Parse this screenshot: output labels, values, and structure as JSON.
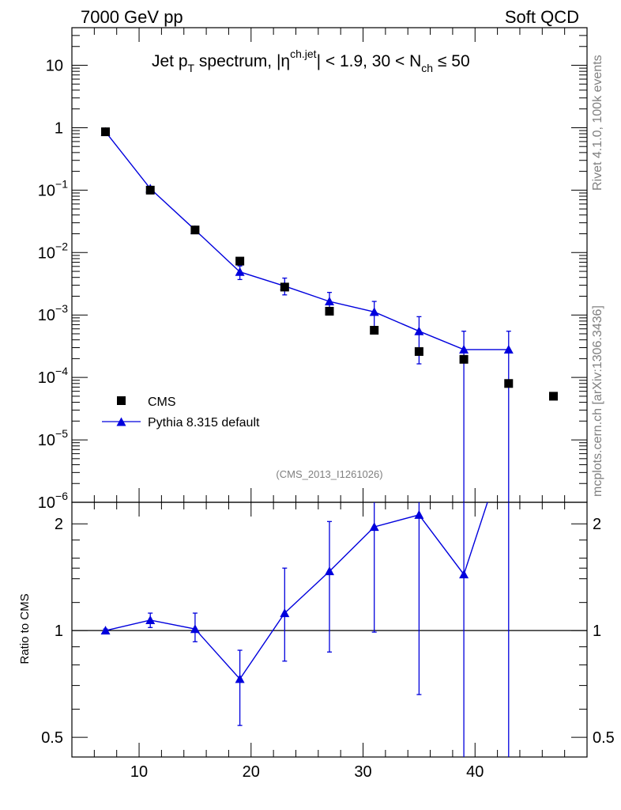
{
  "header": {
    "energy": "7000 GeV pp",
    "category": "Soft QCD"
  },
  "side": {
    "version": "Rivet 4.1.0,  100k events",
    "source": "mcplots.cern.ch [arXiv:1306.3436]"
  },
  "colors": {
    "mc": "#0000dd",
    "data": "#000000"
  },
  "chart_data": [
    {
      "type": "scatter",
      "title_parts": {
        "pre": "Jet p",
        "pt_sub": "T",
        "mid": " spectrum, |η",
        "eta_sup": "ch.jet",
        "post": "| < 1.9, 30 < N",
        "n_sub": "ch",
        "tail": " ≤ 50"
      },
      "analysis_id": "(CMS_2013_I1261026)",
      "xlim": [
        4,
        50
      ],
      "yscale": "log",
      "ylim": [
        1e-06,
        40
      ],
      "yticks": [
        {
          "v": 10,
          "base": "10",
          "exp": ""
        },
        {
          "v": 1,
          "base": "1",
          "exp": ""
        },
        {
          "v": 0.1,
          "base": "10",
          "exp": "−1"
        },
        {
          "v": 0.01,
          "base": "10",
          "exp": "−2"
        },
        {
          "v": 0.001,
          "base": "10",
          "exp": "−3"
        },
        {
          "v": 0.0001,
          "base": "10",
          "exp": "−4"
        },
        {
          "v": 1e-05,
          "base": "10",
          "exp": "−5"
        },
        {
          "v": 1e-06,
          "base": "10",
          "exp": "−6"
        }
      ],
      "legend": [
        "CMS",
        "Pythia 8.315 default"
      ],
      "series": [
        {
          "name": "CMS",
          "marker": "square",
          "x": [
            7,
            11,
            15,
            19,
            23,
            27,
            31,
            35,
            39,
            43,
            47
          ],
          "y": [
            0.86,
            0.1,
            0.023,
            0.0073,
            0.0028,
            0.00115,
            0.00057,
            0.00026,
            0.000195,
            8e-05,
            5e-05
          ]
        },
        {
          "name": "Pythia 8.315 default",
          "marker": "triangle",
          "x": [
            7,
            11,
            15,
            19,
            23,
            27,
            31,
            35,
            39,
            43
          ],
          "y": [
            0.86,
            0.106,
            0.023,
            0.0049,
            0.0029,
            0.00165,
            0.00112,
            0.00055,
            0.00028,
            0.00028
          ],
          "y_low": [
            0.84,
            0.101,
            0.0215,
            0.0037,
            0.0021,
            0.00108,
            0.00062,
            0.000165,
            5e-07,
            5e-07
          ],
          "y_high": [
            0.88,
            0.111,
            0.0245,
            0.0061,
            0.0039,
            0.0023,
            0.00165,
            0.00094,
            0.00055,
            0.00055
          ],
          "step_to": 43
        }
      ]
    },
    {
      "type": "line",
      "ylabel": "Ratio to CMS",
      "xlabel_ticks": [
        "10",
        "20",
        "30",
        "40"
      ],
      "xticks": [
        10,
        20,
        30,
        40
      ],
      "xlim": [
        4,
        50
      ],
      "yscale": "log",
      "ylim": [
        0.44,
        2.3
      ],
      "yticks": [
        {
          "v": 0.5,
          "label": "0.5"
        },
        {
          "v": 1,
          "label": "1"
        },
        {
          "v": 2,
          "label": "2"
        }
      ],
      "series": [
        {
          "name": "Pythia 8.315 default / CMS",
          "x": [
            7,
            11,
            15,
            19,
            23,
            27,
            31,
            35,
            39,
            43
          ],
          "y": [
            1.0,
            1.07,
            1.01,
            0.73,
            1.12,
            1.47,
            1.96,
            2.12,
            1.44,
            3.5
          ],
          "y_low": [
            0.99,
            1.02,
            0.93,
            0.54,
            0.82,
            0.87,
            0.99,
            0.66,
            0.3,
            0.3
          ],
          "y_high": [
            1.01,
            1.12,
            1.12,
            0.88,
            1.5,
            2.03,
            2.8,
            2.8,
            2.8,
            2.8
          ]
        }
      ],
      "reference": 1
    }
  ]
}
